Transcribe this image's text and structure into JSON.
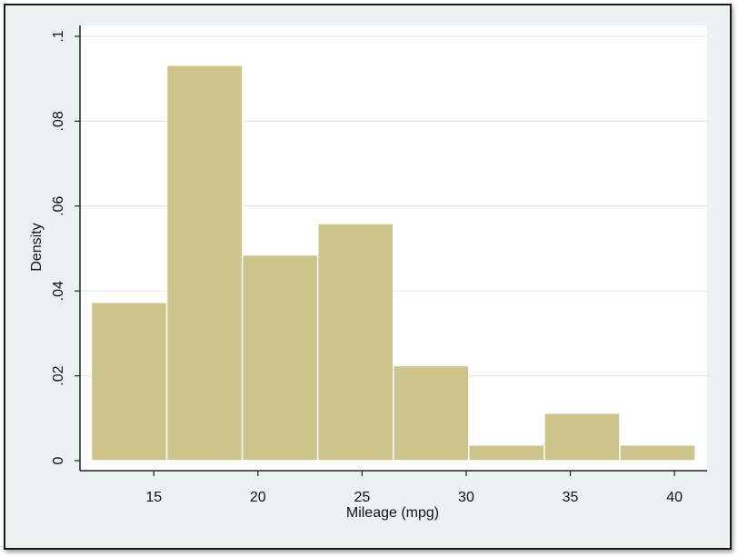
{
  "chart_data": {
    "type": "bar",
    "subtype": "histogram",
    "xlabel": "Mileage (mpg)",
    "ylabel": "Density",
    "bins": [
      {
        "x0": 12.0,
        "x1": 15.625,
        "density": 0.0373
      },
      {
        "x0": 15.625,
        "x1": 19.25,
        "density": 0.0932
      },
      {
        "x0": 19.25,
        "x1": 22.875,
        "density": 0.0485
      },
      {
        "x0": 22.875,
        "x1": 26.5,
        "density": 0.0559
      },
      {
        "x0": 26.5,
        "x1": 30.125,
        "density": 0.0224
      },
      {
        "x0": 30.125,
        "x1": 33.75,
        "density": 0.0037
      },
      {
        "x0": 33.75,
        "x1": 37.375,
        "density": 0.0112
      },
      {
        "x0": 37.375,
        "x1": 41.0,
        "density": 0.0037
      }
    ],
    "xticks": [
      15,
      20,
      25,
      30,
      35,
      40
    ],
    "yticks": [
      0,
      0.02,
      0.04,
      0.06,
      0.08,
      0.1
    ],
    "yticklabels": [
      "0",
      ".02",
      ".04",
      ".06",
      ".08",
      ".1"
    ],
    "xlim": [
      11.5,
      41.5
    ],
    "ylim": [
      0,
      0.1
    ],
    "grid": true,
    "colors": {
      "bar_fill": "#cdc38c",
      "bar_edge": "#ffffff",
      "plot_background": "#ffffff",
      "outer_background": "#eaf2f3",
      "gridline": "#dce6ea",
      "axis": "#222222"
    }
  }
}
